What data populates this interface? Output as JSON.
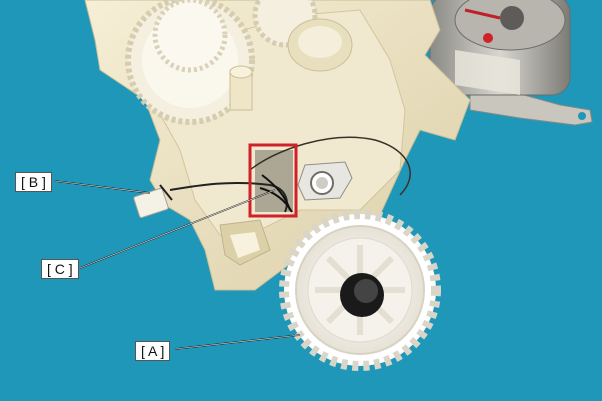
{
  "callouts": {
    "a": "[ A ]",
    "b": "[ B ]",
    "c": "[ C ]"
  },
  "colors": {
    "background": "#1f97b8",
    "plastic": "#efe6c8",
    "highlight_box": "#d0202a"
  },
  "highlight": {
    "target": "C",
    "color": "#d0202a"
  }
}
